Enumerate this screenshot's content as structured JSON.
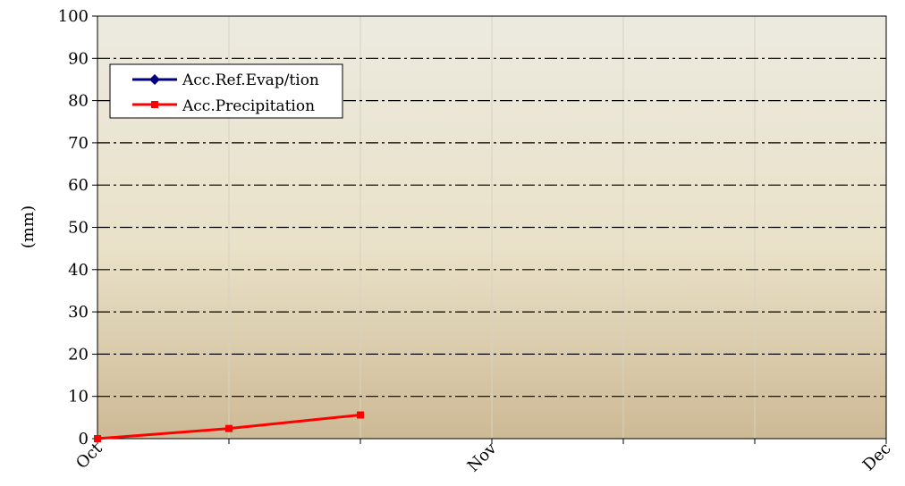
{
  "chart_data": {
    "type": "line",
    "title": "",
    "xlabel": "",
    "ylabel": "(mm)",
    "ylim": [
      0,
      100
    ],
    "yticks": [
      0,
      10,
      20,
      30,
      40,
      50,
      60,
      70,
      80,
      90,
      100
    ],
    "x_tick_labels": [
      "Oct",
      "Nov",
      "Dec"
    ],
    "x_major_ticks": [
      0,
      3,
      6
    ],
    "x_minor_gridlines": [
      1,
      2,
      4,
      5
    ],
    "x_range": [
      0,
      6
    ],
    "grid": true,
    "legend_position": "top-left",
    "series": [
      {
        "name": "Acc.Ref.Evap/tion",
        "color": "#000080",
        "marker": "diamond",
        "x": [],
        "y": []
      },
      {
        "name": "Acc.Precipitation",
        "color": "#ff0000",
        "marker": "square",
        "x": [
          0,
          1,
          2
        ],
        "y": [
          0,
          2.4,
          5.6
        ]
      }
    ]
  }
}
